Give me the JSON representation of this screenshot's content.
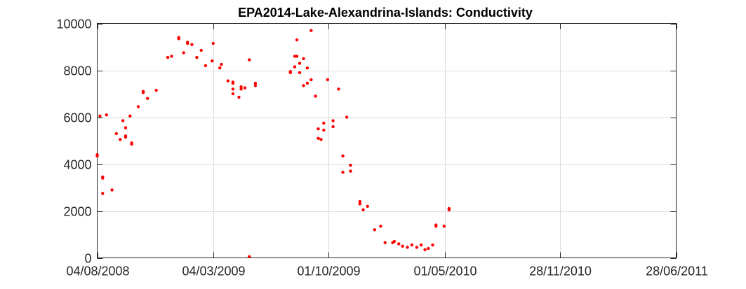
{
  "chart_data": {
    "type": "scatter",
    "title": "EPA2014-Lake-Alexandrina-Islands: Conductivity",
    "xlabel": "",
    "ylabel": "",
    "x_axis": "date",
    "xlim": [
      "2008-08-04",
      "2011-06-28"
    ],
    "ylim": [
      0,
      10000
    ],
    "xticks": [
      {
        "date": "2008-08-04",
        "label": "04/08/2008"
      },
      {
        "date": "2009-03-04",
        "label": "04/03/2009"
      },
      {
        "date": "2009-10-01",
        "label": "01/10/2009"
      },
      {
        "date": "2010-05-01",
        "label": "01/05/2010"
      },
      {
        "date": "2010-11-28",
        "label": "28/11/2010"
      },
      {
        "date": "2011-06-28",
        "label": "28/06/2011"
      }
    ],
    "yticks": [
      0,
      2000,
      4000,
      6000,
      8000,
      10000
    ],
    "grid": true,
    "marker_color": "#ff0000",
    "series": [
      {
        "name": "",
        "points": [
          [
            "2008-08-04",
            4350
          ],
          [
            "2008-08-04",
            4400
          ],
          [
            "2008-08-09",
            6050
          ],
          [
            "2008-08-14",
            2750
          ],
          [
            "2008-08-14",
            3400
          ],
          [
            "2008-08-14",
            3450
          ],
          [
            "2008-08-21",
            6100
          ],
          [
            "2008-08-31",
            2900
          ],
          [
            "2008-09-08",
            5300
          ],
          [
            "2008-09-15",
            5050
          ],
          [
            "2008-09-20",
            5850
          ],
          [
            "2008-09-25",
            5550
          ],
          [
            "2008-09-25",
            5150
          ],
          [
            "2008-09-25",
            5200
          ],
          [
            "2008-10-03",
            6050
          ],
          [
            "2008-10-06",
            4900
          ],
          [
            "2008-10-06",
            4850
          ],
          [
            "2008-10-18",
            6450
          ],
          [
            "2008-10-27",
            7050
          ],
          [
            "2008-10-27",
            7100
          ],
          [
            "2008-11-04",
            6800
          ],
          [
            "2008-11-20",
            7150
          ],
          [
            "2008-12-11",
            8550
          ],
          [
            "2008-12-18",
            8600
          ],
          [
            "2008-12-31",
            9400
          ],
          [
            "2008-12-31",
            9350
          ],
          [
            "2009-01-09",
            8750
          ],
          [
            "2009-01-16",
            9150
          ],
          [
            "2009-01-16",
            9200
          ],
          [
            "2009-01-24",
            9100
          ],
          [
            "2009-02-02",
            8550
          ],
          [
            "2009-02-10",
            8850
          ],
          [
            "2009-02-18",
            8200
          ],
          [
            "2009-03-02",
            8400
          ],
          [
            "2009-03-04",
            9150
          ],
          [
            "2009-03-16",
            8100
          ],
          [
            "2009-03-19",
            8250
          ],
          [
            "2009-03-31",
            7550
          ],
          [
            "2009-04-09",
            7500
          ],
          [
            "2009-04-09",
            7450
          ],
          [
            "2009-04-09",
            7200
          ],
          [
            "2009-04-09",
            7000
          ],
          [
            "2009-04-20",
            6850
          ],
          [
            "2009-04-24",
            7300
          ],
          [
            "2009-04-24",
            7200
          ],
          [
            "2009-05-01",
            7250
          ],
          [
            "2009-05-09",
            8450
          ],
          [
            "2009-05-09",
            50
          ],
          [
            "2009-05-20",
            7450
          ],
          [
            "2009-05-20",
            7350
          ],
          [
            "2009-07-23",
            7900
          ],
          [
            "2009-07-23",
            7950
          ],
          [
            "2009-07-31",
            8600
          ],
          [
            "2009-07-31",
            8150
          ],
          [
            "2009-08-04",
            9300
          ],
          [
            "2009-08-04",
            8600
          ],
          [
            "2009-08-09",
            8300
          ],
          [
            "2009-08-09",
            7900
          ],
          [
            "2009-08-16",
            8500
          ],
          [
            "2009-08-16",
            7350
          ],
          [
            "2009-08-23",
            7450
          ],
          [
            "2009-08-23",
            8100
          ],
          [
            "2009-08-30",
            9700
          ],
          [
            "2009-08-30",
            7600
          ],
          [
            "2009-09-07",
            6900
          ],
          [
            "2009-09-12",
            5500
          ],
          [
            "2009-09-12",
            5100
          ],
          [
            "2009-09-17",
            5050
          ],
          [
            "2009-09-22",
            5750
          ],
          [
            "2009-09-22",
            5450
          ],
          [
            "2009-09-29",
            7600
          ],
          [
            "2009-10-09",
            5850
          ],
          [
            "2009-10-09",
            5600
          ],
          [
            "2009-10-19",
            7200
          ],
          [
            "2009-10-27",
            4350
          ],
          [
            "2009-10-27",
            3650
          ],
          [
            "2009-11-03",
            6000
          ],
          [
            "2009-11-10",
            3950
          ],
          [
            "2009-11-10",
            3700
          ],
          [
            "2009-11-27",
            2400
          ],
          [
            "2009-11-27",
            2300
          ],
          [
            "2009-12-03",
            2050
          ],
          [
            "2009-12-11",
            2200
          ],
          [
            "2009-12-24",
            1200
          ],
          [
            "2010-01-04",
            1350
          ],
          [
            "2010-01-12",
            650
          ],
          [
            "2010-01-26",
            650
          ],
          [
            "2010-01-29",
            700
          ],
          [
            "2010-02-06",
            600
          ],
          [
            "2010-02-13",
            500
          ],
          [
            "2010-02-22",
            450
          ],
          [
            "2010-03-02",
            550
          ],
          [
            "2010-03-11",
            450
          ],
          [
            "2010-03-19",
            550
          ],
          [
            "2010-03-26",
            350
          ],
          [
            "2010-04-01",
            400
          ],
          [
            "2010-04-09",
            550
          ],
          [
            "2010-04-15",
            1350
          ],
          [
            "2010-04-15",
            1400
          ],
          [
            "2010-04-30",
            1350
          ],
          [
            "2010-05-09",
            2050
          ],
          [
            "2010-05-09",
            2100
          ]
        ]
      }
    ]
  }
}
